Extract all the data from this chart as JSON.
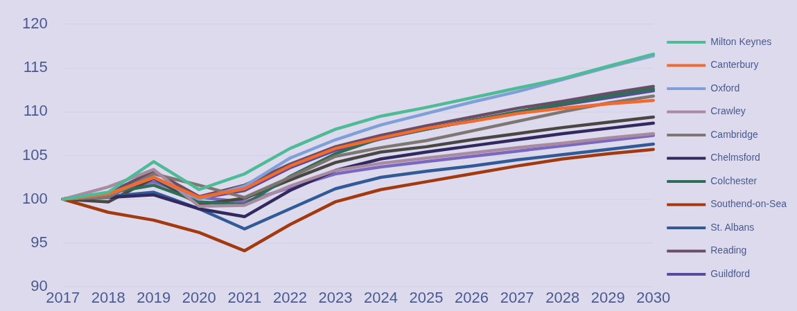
{
  "chart_data": {
    "type": "line",
    "categories": [
      "2017",
      "2018",
      "2019",
      "2020",
      "2021",
      "2022",
      "2023",
      "2024",
      "2025",
      "2026",
      "2027",
      "2028",
      "2029",
      "2030"
    ],
    "ylim": [
      90,
      120
    ],
    "yticks": [
      90,
      95,
      100,
      105,
      110,
      115,
      120
    ],
    "grid": "y",
    "legend": "right",
    "marker": "none",
    "line_style": "solid",
    "series": [
      {
        "name": "Milton Keynes",
        "color": "#4dbb96",
        "values": [
          100,
          100.8,
          104.3,
          101.1,
          102.9,
          105.8,
          108.0,
          109.5,
          110.5,
          111.6,
          112.7,
          113.8,
          115.2,
          116.6
        ]
      },
      {
        "name": "Canterbury",
        "color": "#f26a2e",
        "values": [
          100,
          100.6,
          102.5,
          100.2,
          101.2,
          103.8,
          105.8,
          107.0,
          108.1,
          108.9,
          109.8,
          110.4,
          110.9,
          111.3
        ]
      },
      {
        "name": "Oxford",
        "color": "#7f9fd6",
        "values": [
          100,
          100.6,
          102.5,
          100.0,
          101.5,
          104.7,
          106.8,
          108.5,
          109.8,
          111.1,
          112.3,
          113.7,
          115.1,
          116.4
        ]
      },
      {
        "name": "Crawley",
        "color": "#a88ba0",
        "values": [
          100,
          101.4,
          103.4,
          99.2,
          99.3,
          101.5,
          103.3,
          104.1,
          104.7,
          105.3,
          105.9,
          106.4,
          107.0,
          107.5
        ]
      },
      {
        "name": "Cambridge",
        "color": "#7f7672",
        "values": [
          100,
          100.2,
          102.9,
          101.6,
          100.2,
          102.5,
          104.9,
          105.9,
          106.7,
          107.8,
          108.9,
          110.0,
          111.0,
          111.8
        ]
      },
      {
        "name": "Chelmsford",
        "color": "#322a5e",
        "values": [
          100,
          100.2,
          100.5,
          98.9,
          98.0,
          101.0,
          103.3,
          104.6,
          105.4,
          106.1,
          106.8,
          107.5,
          108.1,
          108.7
        ]
      },
      {
        "name": "Colchester",
        "color": "#2e6e58",
        "values": [
          100,
          100.7,
          101.6,
          99.7,
          99.4,
          102.6,
          105.2,
          107.0,
          108.0,
          109.0,
          110.0,
          110.9,
          111.8,
          112.6
        ]
      },
      {
        "name": "Southend-on-Sea",
        "color": "#a33a0f",
        "values": [
          100,
          98.5,
          97.6,
          96.2,
          94.1,
          97.1,
          99.7,
          101.1,
          102.0,
          102.9,
          103.8,
          104.6,
          105.2,
          105.7
        ]
      },
      {
        "name": "St. Albans",
        "color": "#325a96",
        "values": [
          100,
          100.3,
          100.8,
          98.9,
          96.6,
          98.9,
          101.2,
          102.5,
          103.2,
          103.8,
          104.5,
          105.1,
          105.7,
          106.3
        ]
      },
      {
        "name": "Reading",
        "color": "#6a4d66",
        "values": [
          100,
          100.7,
          103.2,
          100.3,
          101.6,
          104.0,
          106.0,
          107.3,
          108.4,
          109.4,
          110.4,
          111.2,
          112.1,
          112.9
        ]
      },
      {
        "name": "Guildford",
        "color": "#5a4a9e",
        "values": [
          100,
          100.7,
          102.5,
          100.1,
          101.0,
          103.6,
          105.6,
          106.9,
          108.0,
          109.0,
          109.9,
          110.8,
          111.6,
          112.4
        ]
      },
      {
        "color": "#4a4644",
        "values": [
          100,
          99.7,
          102.4,
          99.4,
          100.1,
          102.2,
          104.2,
          105.4,
          106.0,
          106.8,
          107.5,
          108.2,
          108.8,
          109.4
        ]
      },
      {
        "color": "#7b69c0",
        "values": [
          100,
          100.7,
          102.0,
          100.2,
          99.7,
          101.3,
          102.9,
          103.7,
          104.3,
          104.9,
          105.5,
          106.1,
          106.7,
          107.3
        ]
      }
    ]
  }
}
